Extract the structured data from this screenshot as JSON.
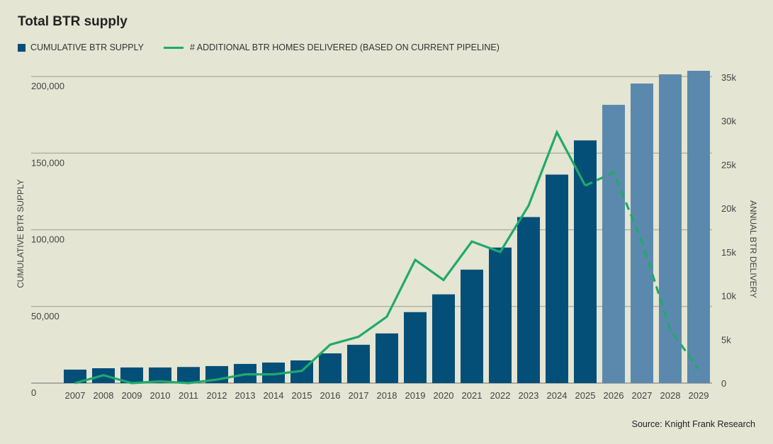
{
  "chart_data": {
    "type": "bar",
    "title": "Total BTR supply",
    "source": "Source: Knight Frank Research",
    "categories": [
      "2007",
      "2008",
      "2009",
      "2010",
      "2011",
      "2012",
      "2013",
      "2014",
      "2015",
      "2016",
      "2017",
      "2018",
      "2019",
      "2020",
      "2021",
      "2022",
      "2023",
      "2024",
      "2025",
      "2026",
      "2027",
      "2028",
      "2029"
    ],
    "ylabel_left": "CUMULATIVE BTR SUPPLY",
    "ylabel_right": "ANNUAL BTR DELIVERY",
    "ylim_left": [
      0,
      200000
    ],
    "ylim_right": [
      0,
      35000
    ],
    "left_ticks": [
      "0",
      "50,000",
      "100,000",
      "150,000",
      "200,000"
    ],
    "left_tick_values": [
      0,
      50000,
      100000,
      150000,
      200000
    ],
    "right_ticks": [
      "0",
      "5k",
      "10k",
      "15k",
      "20k",
      "25k",
      "30k",
      "35k"
    ],
    "right_tick_values": [
      0,
      5000,
      10000,
      15000,
      20000,
      25000,
      30000,
      35000
    ],
    "grid": true,
    "legend_position": "top-left",
    "series": [
      {
        "name": "CUMULATIVE BTR SUPPLY",
        "type": "bar",
        "axis": "left",
        "color": "#034f78",
        "forecast_color": "#5b89ad",
        "forecast_from": "2026",
        "values": [
          8800,
          9700,
          10200,
          10200,
          10500,
          11100,
          12500,
          13400,
          14800,
          19400,
          25000,
          32400,
          46300,
          57900,
          74000,
          88400,
          108300,
          136000,
          158300,
          181500,
          195400,
          201400,
          203700
        ]
      },
      {
        "name": "# ADDITIONAL BTR HOMES DELIVERED (BASED ON CURRENT PIPELINE)",
        "type": "line",
        "axis": "right",
        "color": "#21a96c",
        "dashed_from": "2025",
        "values": [
          0,
          900,
          0,
          200,
          0,
          400,
          1000,
          1000,
          1400,
          4400,
          5300,
          7600,
          14100,
          11800,
          16200,
          15000,
          20300,
          28700,
          22600,
          24100,
          16200,
          6100,
          1600
        ]
      }
    ]
  }
}
